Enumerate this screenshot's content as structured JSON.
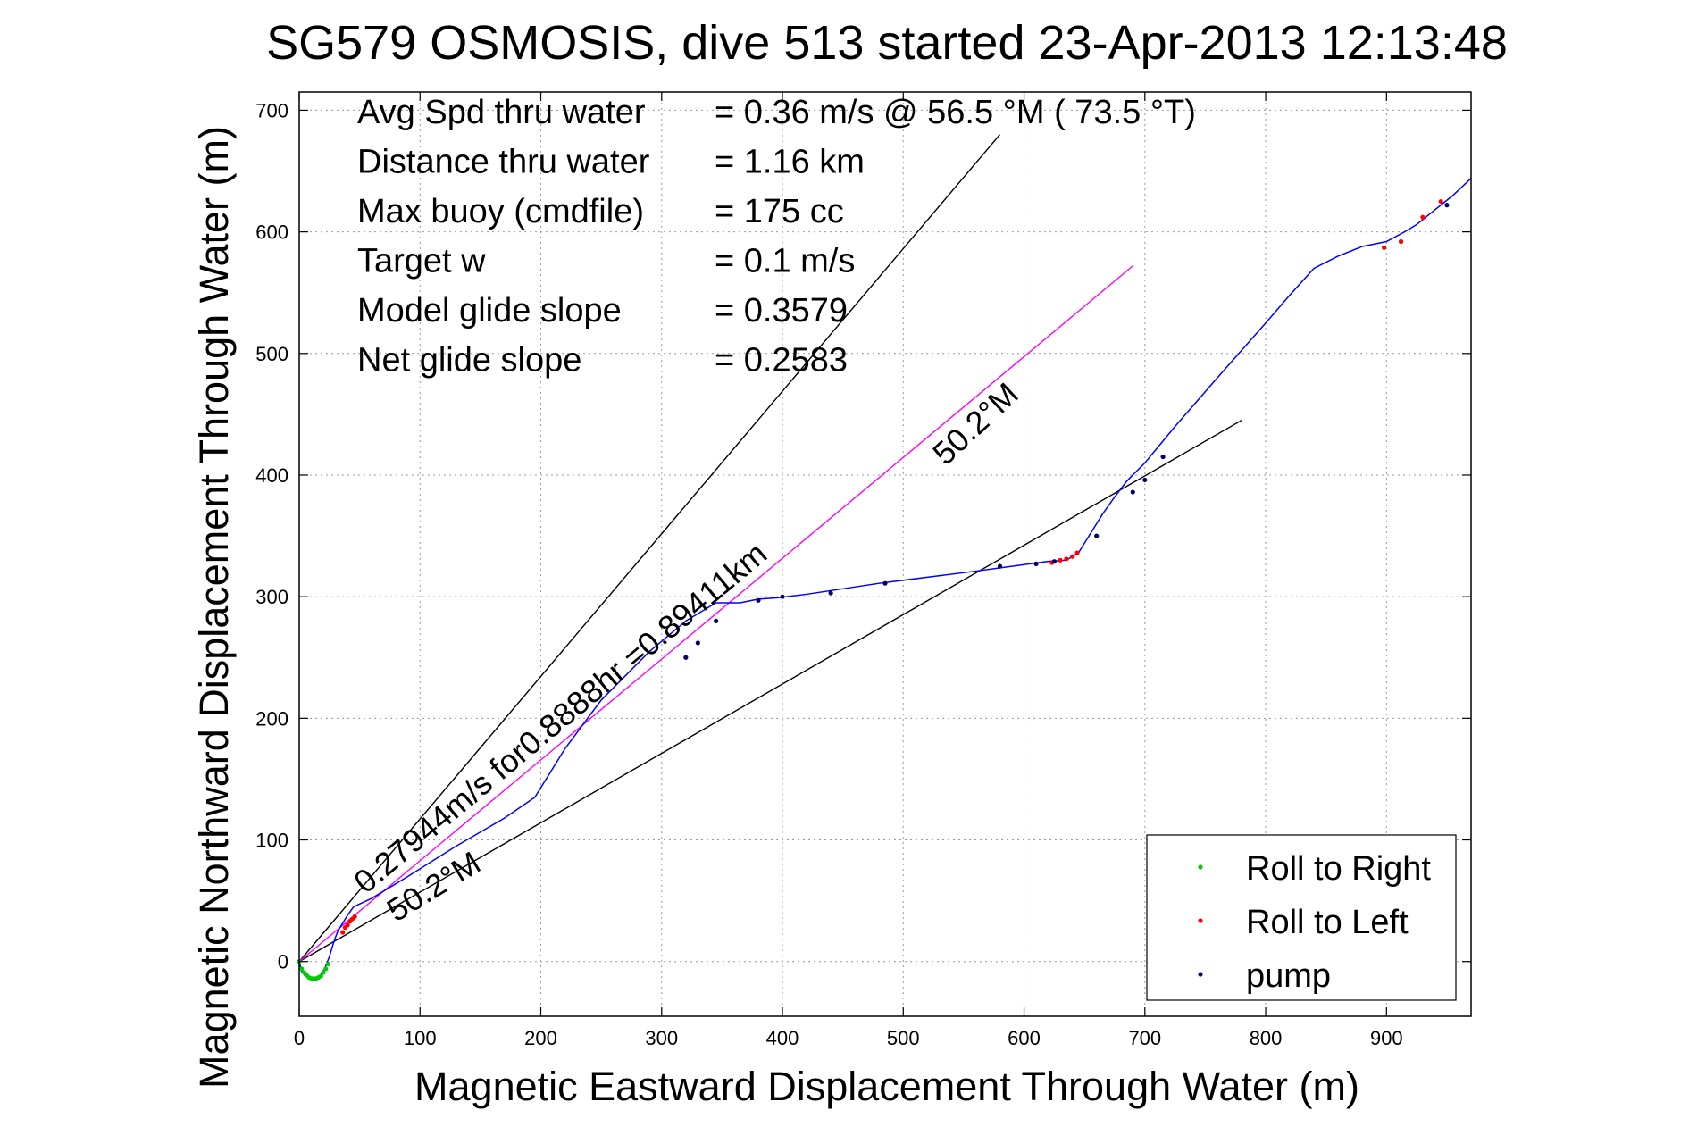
{
  "chart_data": {
    "type": "line",
    "title": "SG579 OSMOSIS, dive 513 started 23-Apr-2013 12:13:48",
    "xlabel": "Magnetic Eastward Displacement Through Water (m)",
    "ylabel": "Magnetic Northward Displacement Through Water (m)",
    "xlim": [
      0,
      970
    ],
    "ylim": [
      -45,
      715
    ],
    "x_ticks": [
      0,
      100,
      200,
      300,
      400,
      500,
      600,
      700,
      800,
      900
    ],
    "y_ticks": [
      0,
      100,
      200,
      300,
      400,
      500,
      600,
      700
    ],
    "grid": true,
    "legend_position": "bottom-right",
    "stats": [
      {
        "label": "Avg Spd thru water",
        "value": "=  0.36 m/s @  56.5 °M ( 73.5 °T)"
      },
      {
        "label": "Distance thru water",
        "value": "=  1.16 km"
      },
      {
        "label": "Max buoy (cmdfile)",
        "value": "= 175 cc"
      },
      {
        "label": "Target w",
        "value": "= 0.1 m/s"
      },
      {
        "label": "Model glide slope",
        "value": "= 0.3579"
      },
      {
        "label": "Net glide slope",
        "value": "= 0.2583"
      }
    ],
    "annotations": [
      {
        "text": "0.27944m/s for0.8888hr =0.89411km",
        "x": 55,
        "y": 55,
        "angle_deg": 39.9
      },
      {
        "text": "50.2°M",
        "x": 80,
        "y": 32,
        "angle_deg": 31.6
      },
      {
        "text": "50.2°M",
        "x": 535,
        "y": 407,
        "angle_deg": 43.0
      }
    ],
    "reference_lines": [
      {
        "name": "upper-bound",
        "color": "#000000",
        "points": [
          [
            0,
            0
          ],
          [
            580,
            680
          ]
        ]
      },
      {
        "name": "lower-bound",
        "color": "#000000",
        "points": [
          [
            0,
            0
          ],
          [
            780,
            445
          ]
        ]
      },
      {
        "name": "net-direction",
        "color": "#ff00ff",
        "points": [
          [
            0,
            0
          ],
          [
            690,
            572
          ]
        ]
      }
    ],
    "series": [
      {
        "name": "",
        "color": "#0000ff",
        "x": [
          0,
          2,
          5,
          9,
          13,
          17,
          21,
          25,
          28,
          30,
          32,
          35,
          40,
          45,
          60,
          90,
          130,
          170,
          195,
          220,
          250,
          290,
          320,
          345,
          365,
          380,
          395,
          420,
          480,
          560,
          620,
          635,
          645,
          655,
          665,
          675,
          685,
          700,
          725,
          760,
          800,
          820,
          840,
          860,
          880,
          900,
          915,
          925,
          940,
          955,
          970
        ],
        "y": [
          0,
          -8,
          -12,
          -14,
          -14,
          -12,
          -6,
          4,
          14,
          20,
          25,
          30,
          38,
          45,
          52,
          70,
          95,
          118,
          135,
          175,
          215,
          255,
          280,
          295,
          295,
          298,
          299,
          302,
          311,
          321,
          329,
          330,
          336,
          352,
          368,
          382,
          395,
          410,
          440,
          480,
          525,
          548,
          570,
          580,
          588,
          592,
          600,
          606,
          618,
          630,
          644
        ]
      },
      {
        "name": "Roll to Right",
        "color": "#00cc00",
        "x": [
          0,
          2,
          4,
          6,
          8,
          10,
          12,
          14,
          16,
          18,
          20,
          22,
          24
        ],
        "y": [
          0,
          -6,
          -9,
          -11,
          -13,
          -14,
          -14,
          -14,
          -13,
          -12,
          -9,
          -6,
          -2
        ]
      },
      {
        "name": "Roll to Left",
        "color": "#ff0000",
        "x": [
          36,
          38,
          40,
          42,
          44,
          46,
          623,
          630,
          635,
          640,
          644,
          898,
          912,
          930,
          945
        ],
        "y": [
          24,
          28,
          30,
          33,
          35,
          37,
          328,
          330,
          331,
          333,
          336,
          587,
          592,
          612,
          625
        ]
      },
      {
        "name": "pump",
        "color": "#000066",
        "x": [
          320,
          330,
          345,
          380,
          400,
          440,
          485,
          580,
          610,
          625,
          660,
          690,
          700,
          715,
          950
        ],
        "y": [
          250,
          262,
          280,
          297,
          300,
          303,
          311,
          325,
          327,
          329,
          350,
          386,
          396,
          415,
          622
        ]
      }
    ]
  }
}
